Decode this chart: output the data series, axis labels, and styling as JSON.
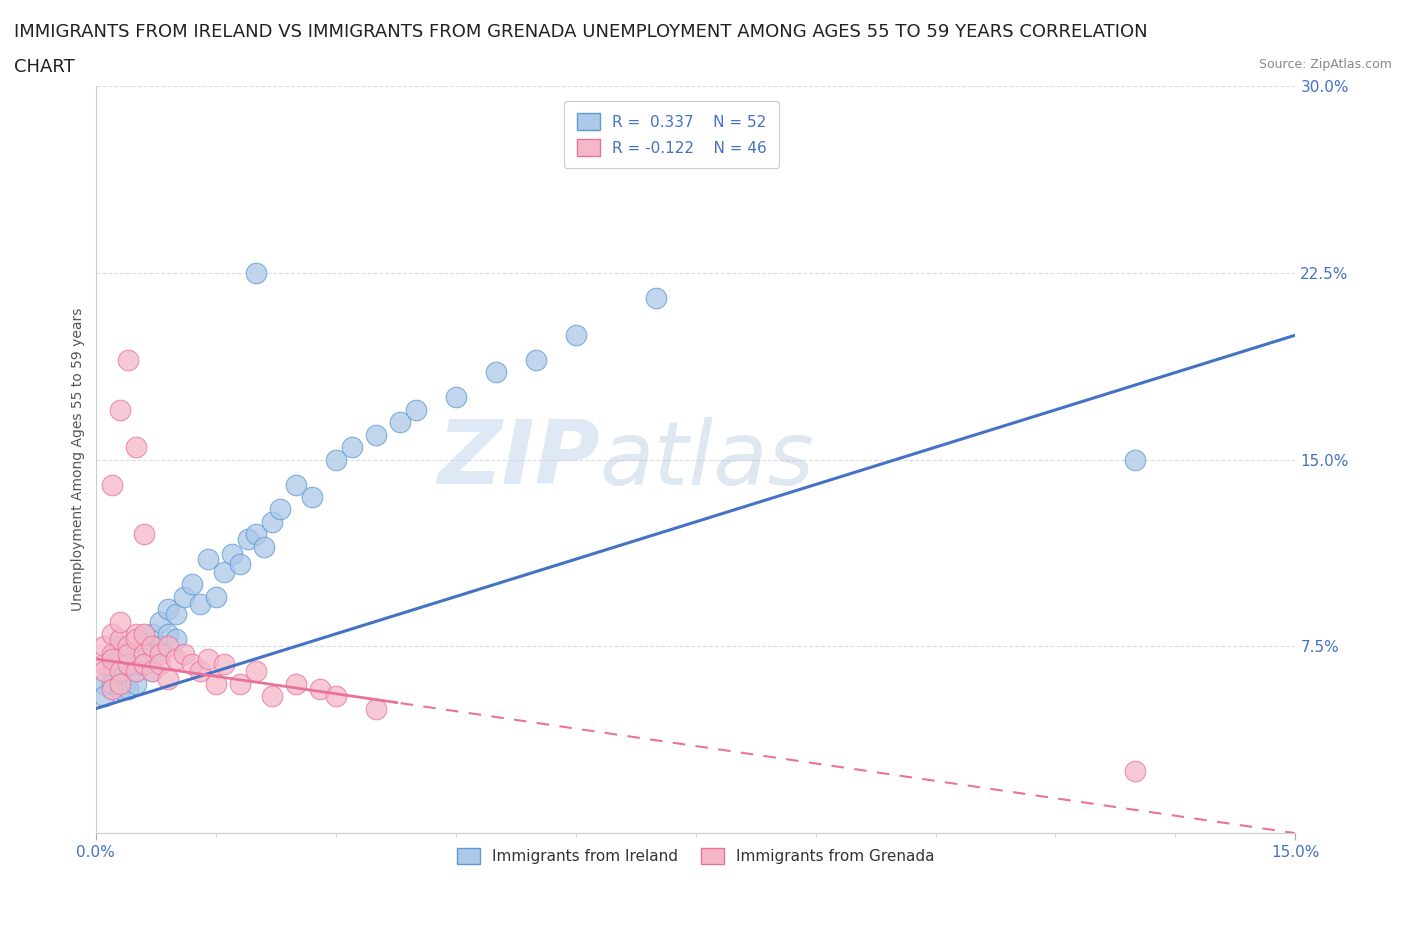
{
  "title_line1": "IMMIGRANTS FROM IRELAND VS IMMIGRANTS FROM GRENADA UNEMPLOYMENT AMONG AGES 55 TO 59 YEARS CORRELATION",
  "title_line2": "CHART",
  "source": "Source: ZipAtlas.com",
  "ireland_R": 0.337,
  "ireland_N": 52,
  "grenada_R": -0.122,
  "grenada_N": 46,
  "ireland_color": "#adc8e8",
  "ireland_edge_color": "#5b9bd5",
  "grenada_color": "#f4b8c8",
  "grenada_edge_color": "#e8729a",
  "ireland_line_color": "#4472c4",
  "grenada_line_color": "#e8729a",
  "xlim": [
    0.0,
    0.15
  ],
  "ylim": [
    0.0,
    0.3
  ],
  "ylabel_ticks": [
    0.0,
    0.075,
    0.15,
    0.225,
    0.3
  ],
  "ylabel_labels": [
    "",
    "7.5%",
    "15.0%",
    "22.5%",
    "30.0%"
  ],
  "ylabel_text": "Unemployment Among Ages 55 to 59 years",
  "watermark_text": "ZIP",
  "watermark_text2": "atlas",
  "legend_ireland": "Immigrants from Ireland",
  "legend_grenada": "Immigrants from Grenada",
  "background_color": "#ffffff",
  "grid_color": "#dddddd",
  "axis_label_color": "#4472c4",
  "title_fontsize": 13,
  "legend_fontsize": 11,
  "axis_tick_fontsize": 11,
  "ireland_x": [
    0.001,
    0.001,
    0.002,
    0.002,
    0.002,
    0.003,
    0.003,
    0.003,
    0.004,
    0.004,
    0.004,
    0.005,
    0.005,
    0.005,
    0.006,
    0.006,
    0.007,
    0.007,
    0.007,
    0.008,
    0.008,
    0.009,
    0.009,
    0.01,
    0.01,
    0.011,
    0.012,
    0.013,
    0.014,
    0.015,
    0.016,
    0.017,
    0.018,
    0.019,
    0.02,
    0.021,
    0.022,
    0.023,
    0.025,
    0.027,
    0.03,
    0.032,
    0.035,
    0.038,
    0.04,
    0.045,
    0.05,
    0.055,
    0.06,
    0.07,
    0.13,
    0.02
  ],
  "ireland_y": [
    0.06,
    0.055,
    0.065,
    0.07,
    0.06,
    0.058,
    0.065,
    0.075,
    0.062,
    0.068,
    0.058,
    0.072,
    0.065,
    0.06,
    0.075,
    0.068,
    0.08,
    0.07,
    0.065,
    0.085,
    0.075,
    0.09,
    0.08,
    0.088,
    0.078,
    0.095,
    0.1,
    0.092,
    0.11,
    0.095,
    0.105,
    0.112,
    0.108,
    0.118,
    0.12,
    0.115,
    0.125,
    0.13,
    0.14,
    0.135,
    0.15,
    0.155,
    0.16,
    0.165,
    0.17,
    0.175,
    0.185,
    0.19,
    0.2,
    0.215,
    0.15,
    0.225
  ],
  "grenada_x": [
    0.001,
    0.001,
    0.001,
    0.002,
    0.002,
    0.002,
    0.002,
    0.003,
    0.003,
    0.003,
    0.003,
    0.004,
    0.004,
    0.004,
    0.005,
    0.005,
    0.005,
    0.006,
    0.006,
    0.006,
    0.007,
    0.007,
    0.008,
    0.008,
    0.009,
    0.009,
    0.01,
    0.011,
    0.012,
    0.013,
    0.014,
    0.015,
    0.016,
    0.018,
    0.02,
    0.022,
    0.025,
    0.028,
    0.03,
    0.035,
    0.003,
    0.002,
    0.004,
    0.005,
    0.006,
    0.13
  ],
  "grenada_y": [
    0.068,
    0.075,
    0.065,
    0.072,
    0.08,
    0.058,
    0.07,
    0.065,
    0.078,
    0.06,
    0.085,
    0.075,
    0.068,
    0.072,
    0.08,
    0.065,
    0.078,
    0.072,
    0.068,
    0.08,
    0.075,
    0.065,
    0.072,
    0.068,
    0.075,
    0.062,
    0.07,
    0.072,
    0.068,
    0.065,
    0.07,
    0.06,
    0.068,
    0.06,
    0.065,
    0.055,
    0.06,
    0.058,
    0.055,
    0.05,
    0.17,
    0.14,
    0.19,
    0.155,
    0.12,
    0.025
  ]
}
